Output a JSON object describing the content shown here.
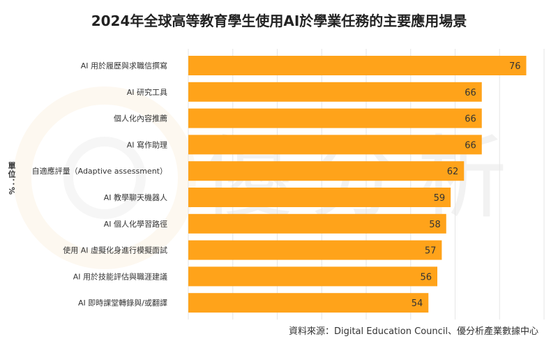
{
  "watermark": {
    "text": "優分析"
  },
  "chart_data": {
    "type": "bar",
    "orientation": "horizontal",
    "title": "2024年全球高等教育學生使用AI於學業任務的主要應用場景",
    "ylabel": "單位：%",
    "categories": [
      "AI 用於履歷與求職信撰寫",
      "AI 研究工具",
      "個人化內容推薦",
      "AI 寫作助理",
      "自適應評量（Adaptive assessment）",
      "AI 教學聊天機器人",
      "AI 個人化學習路徑",
      "使用 AI 虛擬化身進行模擬面試",
      "AI 用於技能評估與職涯建議",
      "AI 即時課堂轉錄與/或翻譯"
    ],
    "values": [
      76,
      66,
      66,
      66,
      62,
      59,
      58,
      57,
      56,
      54
    ],
    "xlim": [
      0,
      80
    ],
    "bar_color": "#ffa31a",
    "grid": true,
    "source": "資料來源：Digital Education Council、優分析產業數據中心"
  }
}
